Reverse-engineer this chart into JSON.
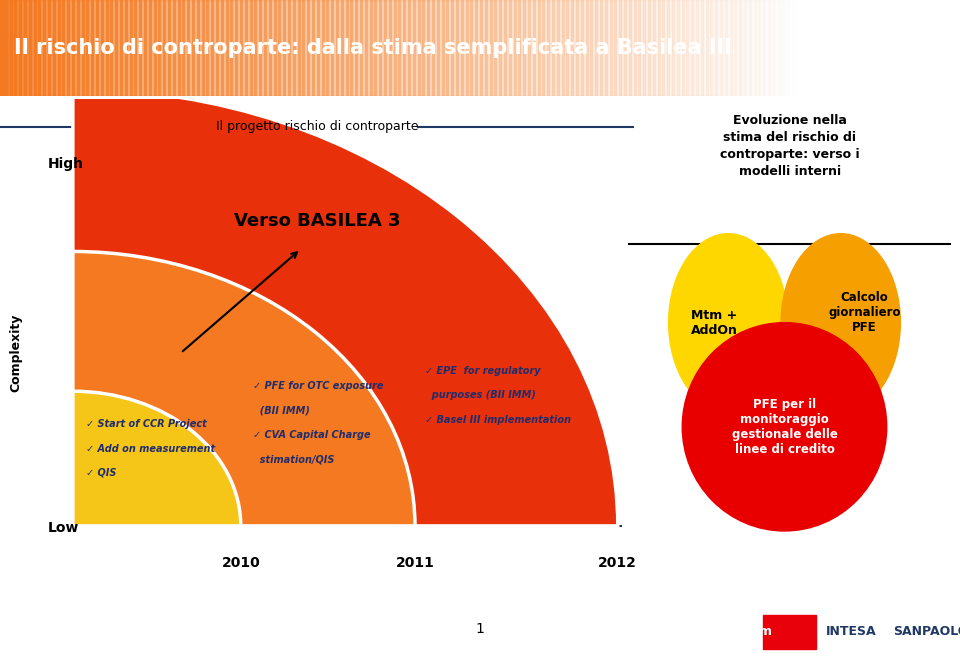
{
  "title": "Il rischio di controparte: dalla stima semplificata a Basilea III",
  "subtitle": "Il progetto rischio di controparte",
  "high_label": "High",
  "low_label": "Low",
  "complexity_label": "Complexity",
  "verso_label": "Verso BASILEA 3",
  "years": [
    "2010",
    "2011",
    "2012"
  ],
  "text_2010": [
    "✓ Start of CCR Project",
    "✓ Add on measurement",
    "✓ QIS"
  ],
  "text_2011": [
    "✓ PFE for OTC exposure",
    "  (BII IMM)",
    "✓ CVA Capital Charge",
    "  stimation/QIS"
  ],
  "text_2012": [
    "✓ EPE  for regulatory",
    "  purposes (BII IMM)",
    "✓ Basel III implementation"
  ],
  "circle_yellow_label": "Mtm +\nAddOn",
  "circle_orange_label": "Calcolo\ngiornaliero\nPFE",
  "circle_red_label": "PFE per il\nmonitoraggio\ngestionale delle\nlinee di credito",
  "right_box_title": "Evoluzione nella\nstima del rischio di\ncontroparte: verso i\nmodelli interni",
  "page_number": "1",
  "title_orange": "#F47920",
  "wedge_yellow": "#F5C518",
  "wedge_orange": "#F47920",
  "wedge_red": "#E8300A",
  "circle_yellow": "#FFD700",
  "circle_orange": "#F5A000",
  "circle_red": "#E80000",
  "navy": "#1F3864",
  "text_navy": "#1F2D6E"
}
